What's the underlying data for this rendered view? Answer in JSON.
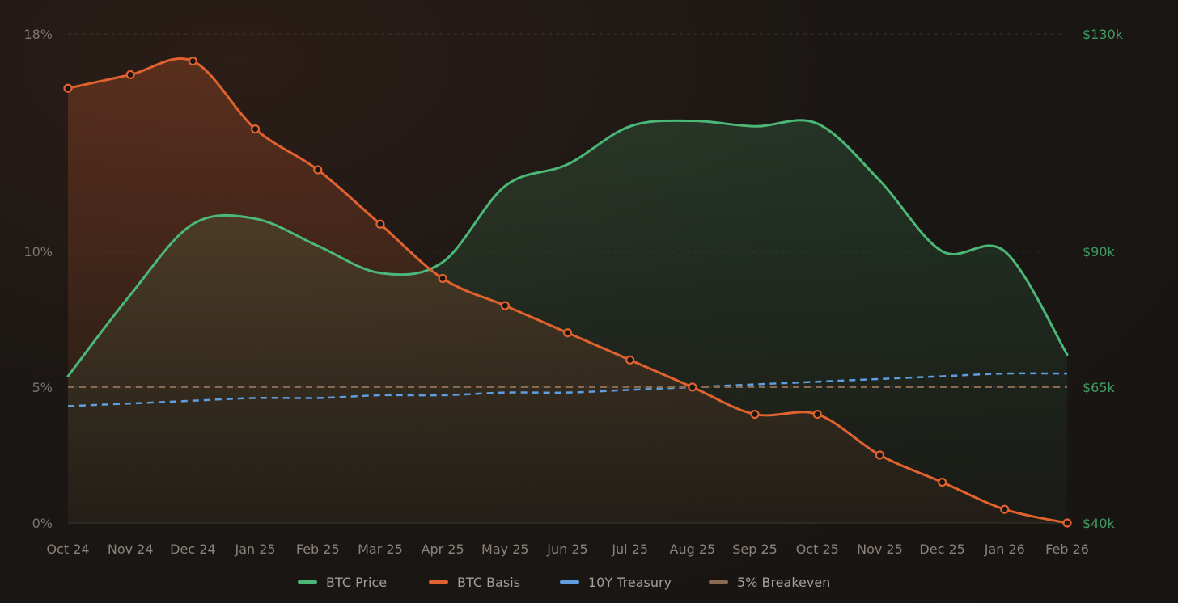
{
  "chart_data": {
    "type": "line",
    "categories": [
      "Oct 24",
      "Nov 24",
      "Dec 24",
      "Jan 25",
      "Feb 25",
      "Mar 25",
      "Apr 25",
      "May 25",
      "Jun 25",
      "Jul 25",
      "Aug 25",
      "Sep 25",
      "Oct 25",
      "Nov 25",
      "Dec 25",
      "Jan 26",
      "Feb 26"
    ],
    "y_left": {
      "ticks": [
        "0%",
        "5%",
        "10%",
        "18%"
      ],
      "tick_values": [
        0,
        5,
        10,
        18
      ],
      "range": [
        0,
        18
      ]
    },
    "y_right": {
      "ticks": [
        "$40k",
        "$65k",
        "$90k",
        "$130k"
      ],
      "tick_values": [
        40000,
        65000,
        90000,
        130000
      ]
    },
    "series": [
      {
        "name": "BTC Price",
        "axis": "right",
        "color": "#4cb877",
        "style": "solid",
        "area": true,
        "markers": false,
        "values": [
          67000,
          82000,
          95000,
          96000,
          91000,
          86000,
          88000,
          102000,
          106000,
          113000,
          114000,
          113000,
          113500,
          103000,
          90000,
          90000,
          71000
        ]
      },
      {
        "name": "BTC Basis",
        "axis": "left",
        "color": "#e0632f",
        "style": "solid",
        "area": true,
        "markers": true,
        "values": [
          16,
          16.5,
          17,
          14.5,
          13,
          11,
          9,
          8,
          7,
          6,
          5,
          4,
          4,
          2.5,
          1.5,
          0.5,
          0
        ]
      },
      {
        "name": "10Y Treasury",
        "axis": "left",
        "color": "#5f9ee0",
        "style": "dashed",
        "area": false,
        "markers": false,
        "values": [
          4.3,
          4.4,
          4.5,
          4.6,
          4.6,
          4.7,
          4.7,
          4.8,
          4.8,
          4.9,
          5.0,
          5.1,
          5.2,
          5.3,
          5.4,
          5.5,
          5.5
        ]
      },
      {
        "name": "5% Breakeven",
        "axis": "left",
        "color": "#8a6a52",
        "style": "dashed",
        "area": false,
        "markers": false,
        "values": [
          5,
          5,
          5,
          5,
          5,
          5,
          5,
          5,
          5,
          5,
          5,
          5,
          5,
          5,
          5,
          5,
          5
        ]
      }
    ],
    "grid": "horizontal dashed",
    "legend": "bottom-center"
  }
}
